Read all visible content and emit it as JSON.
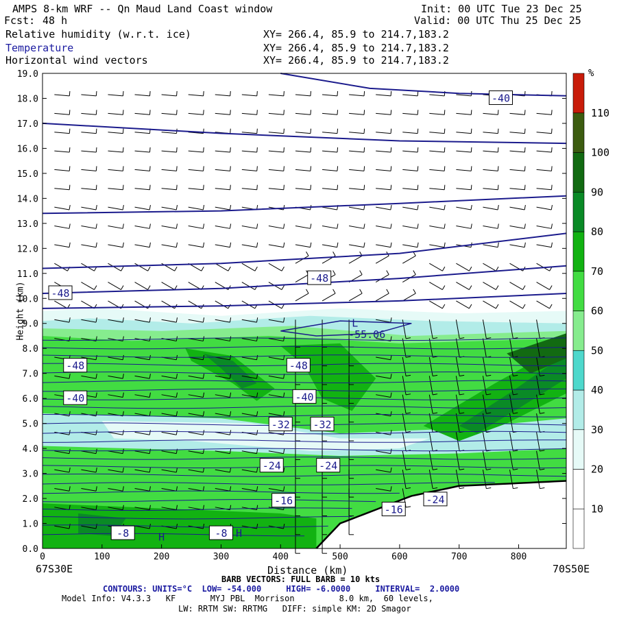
{
  "header": {
    "title": "AMPS 8-km WRF -- Qn Maud Land Coast window",
    "fcst_label": "Fcst:",
    "fcst_value": "48 h",
    "init": "Init: 00 UTC Tue 23 Dec 25",
    "valid": "Valid: 00 UTC Thu 25 Dec 25"
  },
  "fields": [
    {
      "name": "Relative humidity (w.r.t. ice)",
      "xy": "XY= 266.4, 85.9 to 214.7,183.2"
    },
    {
      "name": "Temperature",
      "xy": "XY= 266.4, 85.9 to 214.7,183.2"
    },
    {
      "name": "Horizontal wind vectors",
      "xy": "XY= 266.4, 85.9 to 214.7,183.2"
    }
  ],
  "chart_data": {
    "type": "contour-cross-section",
    "xlabel": "Distance (km)",
    "ylabel": "Height (km)",
    "xlim": [
      0,
      880
    ],
    "ylim": [
      0,
      19
    ],
    "x_ticks": [
      0,
      100,
      200,
      300,
      400,
      500,
      600,
      700,
      800
    ],
    "y_ticks": [
      "0.0",
      "1.0",
      "2.0",
      "3.0",
      "4.0",
      "5.0",
      "6.0",
      "7.0",
      "8.0",
      "9.0",
      "10.0",
      "11.0",
      "12.0",
      "13.0",
      "14.0",
      "15.0",
      "16.0",
      "17.0",
      "18.0",
      "19.0"
    ],
    "left_endpoint": "67S30E",
    "right_endpoint": "70S50E",
    "colorbar": {
      "unit": "%",
      "levels": [
        10,
        20,
        30,
        40,
        50,
        60,
        70,
        80,
        90,
        100,
        110
      ],
      "colors": [
        "#ffffff",
        "#ffffff",
        "#e6faf7",
        "#b2ece8",
        "#4ed8cc",
        "#86ec8e",
        "#42dc42",
        "#12b212",
        "#0a8a26",
        "#126a12",
        "#3c5c10",
        "#c81c0a"
      ]
    },
    "temperature_labels": [
      {
        "text": "-40",
        "x": 770,
        "y": 18.0
      },
      {
        "text": "-48",
        "x": 30,
        "y": 10.2
      },
      {
        "text": "-48",
        "x": 465,
        "y": 10.8
      },
      {
        "text": "-55.06",
        "x": 545,
        "y": 8.55
      },
      {
        "text": "L",
        "x": 525,
        "y": 9.0
      },
      {
        "text": "-48",
        "x": 55,
        "y": 7.3
      },
      {
        "text": "-48",
        "x": 430,
        "y": 7.3
      },
      {
        "text": "-40",
        "x": 55,
        "y": 6.0
      },
      {
        "text": "-40",
        "x": 440,
        "y": 6.05
      },
      {
        "text": "-32",
        "x": 400,
        "y": 4.95
      },
      {
        "text": "-32",
        "x": 470,
        "y": 4.95
      },
      {
        "text": "-24",
        "x": 385,
        "y": 3.3
      },
      {
        "text": "-24",
        "x": 480,
        "y": 3.3
      },
      {
        "text": "-16",
        "x": 405,
        "y": 1.9
      },
      {
        "text": "-16",
        "x": 590,
        "y": 1.55
      },
      {
        "text": "-24",
        "x": 660,
        "y": 1.95
      },
      {
        "text": "-8",
        "x": 135,
        "y": 0.6
      },
      {
        "text": "-8",
        "x": 300,
        "y": 0.6
      },
      {
        "text": "H",
        "x": 200,
        "y": 0.45
      },
      {
        "text": "H",
        "x": 330,
        "y": 0.6
      }
    ]
  },
  "footer": {
    "barb": "BARB VECTORS: FULL BARB = 10 kts",
    "contours": "CONTOURS: UNITS=°C  LOW= -54.000     HIGH= -6.0000     INTERVAL=  2.0000",
    "model_info": "Model Info: V4.3.3   KF       MYJ PBL  Morrison         8.0 km,  60 levels,",
    "model_info2": "LW: RRTM SW: RRTMG   DIFF: simple KM: 2D Smagor"
  }
}
